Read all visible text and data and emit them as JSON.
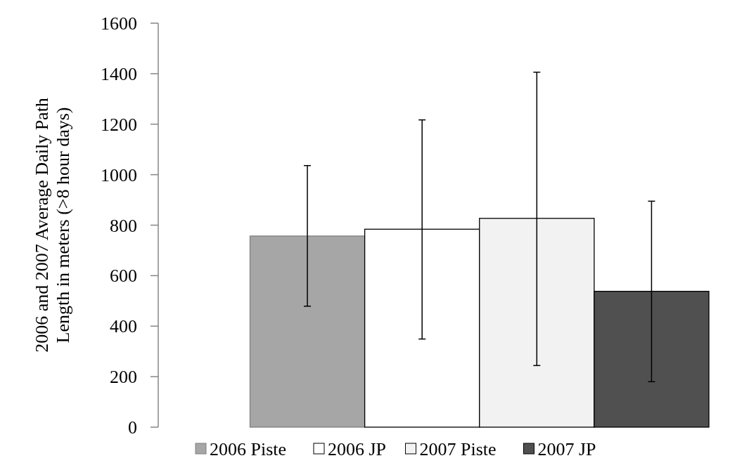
{
  "chart_data": {
    "type": "bar",
    "ylabel": "2006 and 2007  Average Daily Path\nLength in meters (>8 hour days)",
    "categories": [
      null
    ],
    "series": [
      {
        "name": "2006 Piste",
        "color": "#a6a6a6",
        "values": [
          757
        ],
        "errors": [
          [
            479,
            1036
          ]
        ]
      },
      {
        "name": "2006 JP",
        "color": "#ffffff",
        "values": [
          784
        ],
        "errors": [
          [
            349,
            1217
          ]
        ]
      },
      {
        "name": "2007 Piste",
        "color": "#f2f2f2",
        "values": [
          827
        ],
        "errors": [
          [
            244,
            1406
          ]
        ]
      },
      {
        "name": "2007 JP",
        "color": "#505050",
        "values": [
          538
        ],
        "errors": [
          [
            180,
            895
          ]
        ]
      }
    ],
    "ylim": [
      0,
      1600
    ],
    "yticks": [
      0,
      200,
      400,
      600,
      800,
      1000,
      1200,
      1400,
      1600
    ],
    "grid": false,
    "legend": "bottom"
  }
}
